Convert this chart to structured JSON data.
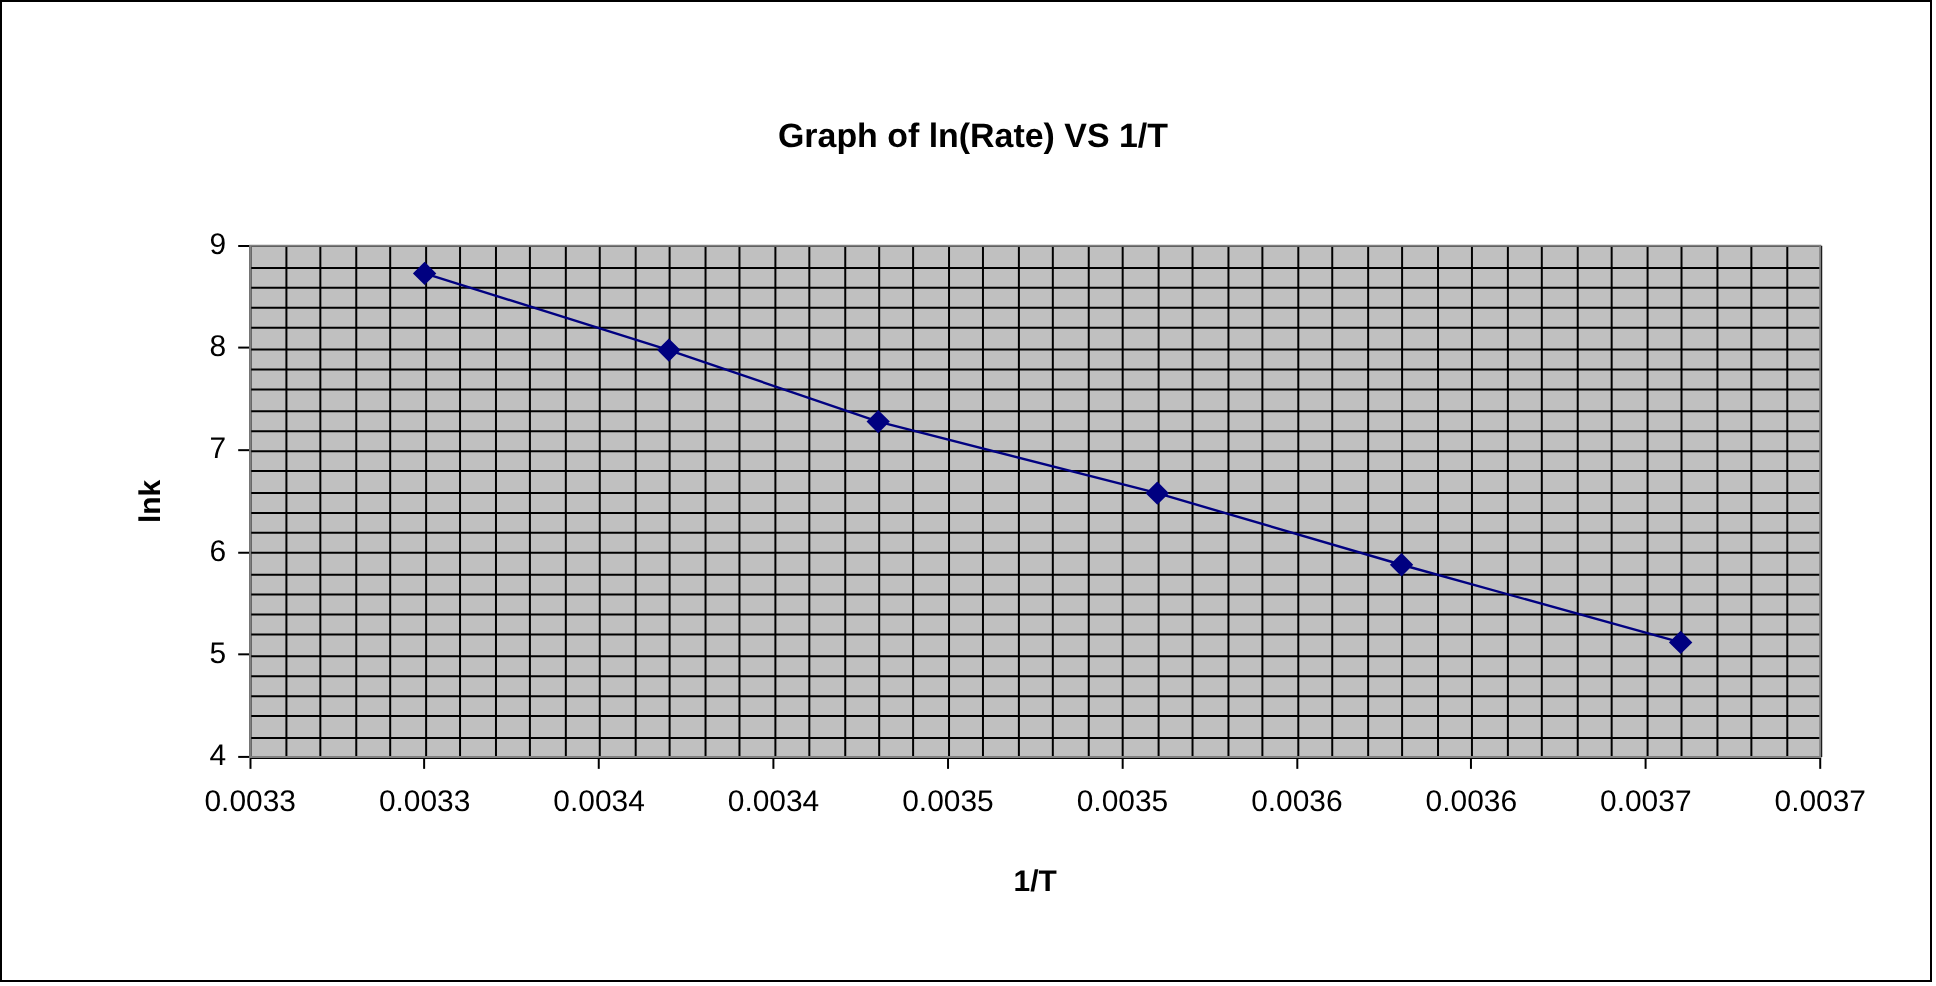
{
  "chart_data": {
    "type": "line",
    "title": "Graph of ln(Rate) VS 1/T",
    "xlabel": "1/T",
    "ylabel": "lnk",
    "x": [
      0.0033,
      0.00337,
      0.00343,
      0.00351,
      0.00358,
      0.00366
    ],
    "series": [
      {
        "color": "#000080",
        "values": [
          8.73,
          7.98,
          7.28,
          6.58,
          5.88,
          5.12
        ]
      }
    ],
    "xlim": [
      0.00325,
      0.0037
    ],
    "xticks": [
      {
        "value": 0.00325,
        "label": "0.0033"
      },
      0.0033,
      {
        "value": 0.00335,
        "label": "0.0034"
      },
      0.0034,
      {
        "value": 0.00345,
        "label": "0.0035"
      },
      0.0035,
      {
        "value": 0.00355,
        "label": "0.0036"
      },
      0.0036,
      {
        "value": 0.00365,
        "label": "0.0037"
      },
      0.0037
    ],
    "ylim": [
      4,
      9
    ],
    "yticks": [
      4,
      5,
      6,
      7,
      8,
      9
    ],
    "grid": true,
    "legend": false,
    "marker": "diamond",
    "line_style": "solid"
  }
}
